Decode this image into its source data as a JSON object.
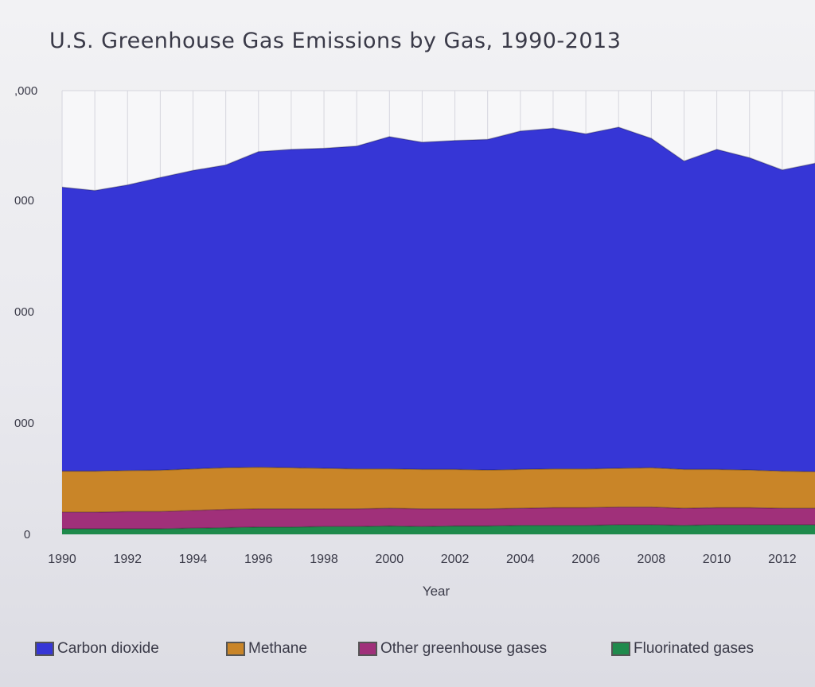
{
  "chart_data": {
    "type": "area",
    "stacked": true,
    "title": "U.S. Greenhouse Gas Emissions by Gas, 1990-2013",
    "xlabel": "Year",
    "ylabel": "",
    "x": [
      1990,
      1991,
      1992,
      1993,
      1994,
      1995,
      1996,
      1997,
      1998,
      1999,
      2000,
      2001,
      2002,
      2003,
      2004,
      2005,
      2006,
      2007,
      2008,
      2009,
      2010,
      2011,
      2012,
      2013
    ],
    "xticks": [
      "1990",
      "1992",
      "1994",
      "1996",
      "1998",
      "2000",
      "2002",
      "2004",
      "2006",
      "2008",
      "2010",
      "2012"
    ],
    "yticks": [
      "0",
      "000",
      "000",
      "000",
      "000",
      ",000"
    ],
    "ylim": [
      0,
      8000
    ],
    "grid": true,
    "legend_position": "bottom",
    "series": [
      {
        "name": "Fluorinated gases",
        "color": "#1f8a4c",
        "values": [
          100,
          100,
          100,
          100,
          110,
          120,
          130,
          130,
          140,
          140,
          150,
          140,
          150,
          150,
          160,
          160,
          160,
          170,
          170,
          160,
          170,
          170,
          170,
          170
        ]
      },
      {
        "name": "Other greenhouse gases",
        "color": "#a0307a",
        "values": [
          300,
          300,
          310,
          310,
          320,
          330,
          330,
          330,
          320,
          320,
          320,
          320,
          310,
          310,
          310,
          320,
          320,
          320,
          320,
          310,
          310,
          310,
          300,
          300
        ]
      },
      {
        "name": "Methane",
        "color": "#c98528",
        "values": [
          740,
          740,
          740,
          745,
          750,
          750,
          750,
          740,
          730,
          720,
          710,
          710,
          710,
          700,
          700,
          700,
          700,
          700,
          710,
          700,
          690,
          680,
          670,
          660
        ]
      },
      {
        "name": "Carbon dioxide",
        "color": "#3636d6",
        "values": [
          5120,
          5060,
          5150,
          5280,
          5380,
          5460,
          5690,
          5740,
          5770,
          5820,
          5990,
          5900,
          5930,
          5960,
          6100,
          6140,
          6040,
          6150,
          5940,
          5560,
          5770,
          5630,
          5430,
          5560
        ]
      }
    ]
  },
  "legend": {
    "items": [
      {
        "label": "Carbon dioxide",
        "color": "#3636d6"
      },
      {
        "label": "Methane",
        "color": "#c98528"
      },
      {
        "label": "Other greenhouse gases",
        "color": "#a0307a"
      },
      {
        "label": "Fluorinated gases",
        "color": "#1f8a4c"
      }
    ]
  }
}
